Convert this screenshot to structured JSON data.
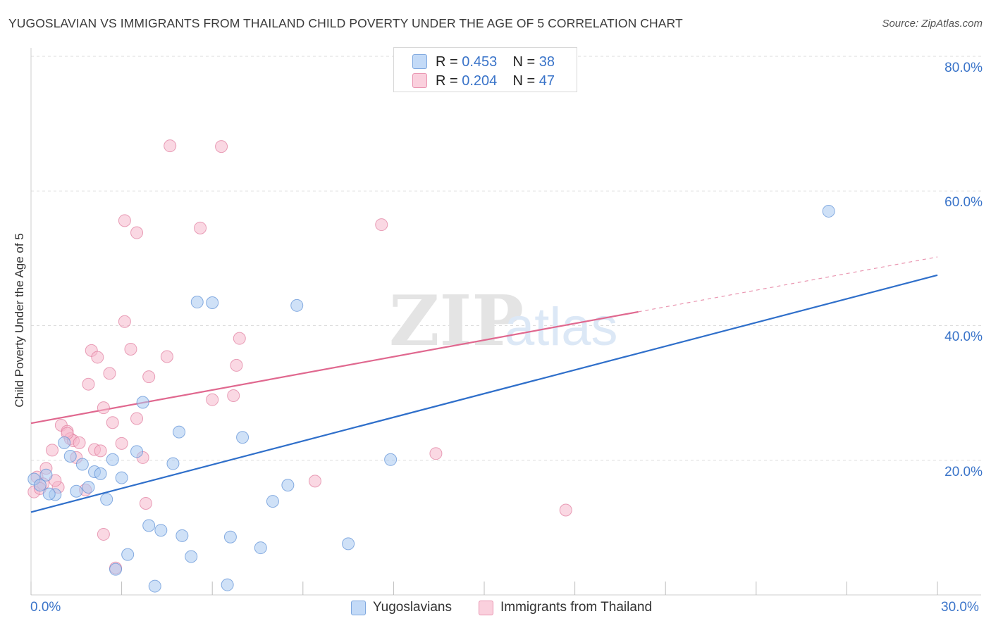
{
  "title": "YUGOSLAVIAN VS IMMIGRANTS FROM THAILAND CHILD POVERTY UNDER THE AGE OF 5 CORRELATION CHART",
  "source": "Source: ZipAtlas.com",
  "watermark": {
    "zip": "ZIP",
    "atlas": "atlas"
  },
  "legend": {
    "r_label": "R =",
    "n_label": "N =",
    "items": [
      {
        "name": "Yugoslavians",
        "r": "0.453",
        "n": "38",
        "color": "#a8c8f0",
        "edge": "#5b8fd6"
      },
      {
        "name": "Immigrants from Thailand",
        "r": "0.204",
        "n": "47",
        "color": "#f6b8cc",
        "edge": "#e07a9c"
      }
    ]
  },
  "chart_data": {
    "type": "scatter",
    "ylabel": "Child Poverty Under the Age of 5",
    "xlabel": "",
    "xlim": [
      0,
      30
    ],
    "ylim": [
      0,
      80
    ],
    "x_ticks": [
      "0.0%",
      "30.0%"
    ],
    "y_ticks": [
      "20.0%",
      "40.0%",
      "60.0%",
      "80.0%"
    ],
    "grid": true,
    "series": [
      {
        "name": "Yugoslavians",
        "color": "#a8c8f0",
        "edge": "#5b8fd6",
        "trend_color": "#2f6fca",
        "trend": {
          "x": [
            0,
            30
          ],
          "y": [
            12.3,
            47.5
          ],
          "dashed_from": null
        },
        "points": [
          [
            0.1,
            17.2
          ],
          [
            0.3,
            16.3
          ],
          [
            0.5,
            17.8
          ],
          [
            0.8,
            14.9
          ],
          [
            1.1,
            22.6
          ],
          [
            1.3,
            20.6
          ],
          [
            1.5,
            15.4
          ],
          [
            1.7,
            19.4
          ],
          [
            1.9,
            16.0
          ],
          [
            2.1,
            18.3
          ],
          [
            2.3,
            18.0
          ],
          [
            2.5,
            14.2
          ],
          [
            2.7,
            20.1
          ],
          [
            3.0,
            17.4
          ],
          [
            3.2,
            6.0
          ],
          [
            3.5,
            21.3
          ],
          [
            3.7,
            28.6
          ],
          [
            3.9,
            10.3
          ],
          [
            4.1,
            1.3
          ],
          [
            4.3,
            9.6
          ],
          [
            4.7,
            19.5
          ],
          [
            4.9,
            24.2
          ],
          [
            5.0,
            8.8
          ],
          [
            5.3,
            5.7
          ],
          [
            5.5,
            43.5
          ],
          [
            6.0,
            43.4
          ],
          [
            6.5,
            1.5
          ],
          [
            6.6,
            8.6
          ],
          [
            7.0,
            23.4
          ],
          [
            7.6,
            7.0
          ],
          [
            8.0,
            13.9
          ],
          [
            8.5,
            16.3
          ],
          [
            8.8,
            43.0
          ],
          [
            10.5,
            7.6
          ],
          [
            11.9,
            20.1
          ],
          [
            26.4,
            57.0
          ],
          [
            2.8,
            3.8
          ],
          [
            0.6,
            15.0
          ]
        ]
      },
      {
        "name": "Immigrants from Thailand",
        "color": "#f6b8cc",
        "edge": "#e07a9c",
        "trend_color": "#e0688f",
        "trend": {
          "x": [
            0,
            30
          ],
          "y": [
            25.5,
            50.2
          ],
          "dashed_from": 20.1
        },
        "points": [
          [
            0.1,
            15.3
          ],
          [
            0.2,
            17.5
          ],
          [
            0.4,
            16.5
          ],
          [
            0.5,
            18.8
          ],
          [
            0.7,
            21.5
          ],
          [
            0.9,
            16.0
          ],
          [
            1.0,
            25.2
          ],
          [
            1.2,
            24.3
          ],
          [
            1.3,
            23.2
          ],
          [
            1.4,
            22.9
          ],
          [
            1.5,
            20.4
          ],
          [
            1.6,
            22.6
          ],
          [
            1.8,
            15.6
          ],
          [
            1.9,
            31.3
          ],
          [
            2.0,
            36.3
          ],
          [
            2.1,
            21.6
          ],
          [
            2.2,
            35.3
          ],
          [
            2.4,
            27.8
          ],
          [
            2.4,
            9.0
          ],
          [
            2.6,
            32.9
          ],
          [
            2.7,
            25.6
          ],
          [
            2.8,
            4.0
          ],
          [
            3.0,
            22.5
          ],
          [
            3.1,
            55.6
          ],
          [
            3.1,
            40.6
          ],
          [
            3.3,
            36.5
          ],
          [
            3.5,
            53.8
          ],
          [
            3.5,
            26.2
          ],
          [
            3.7,
            20.4
          ],
          [
            3.8,
            13.6
          ],
          [
            3.9,
            32.4
          ],
          [
            4.5,
            35.4
          ],
          [
            4.6,
            66.7
          ],
          [
            5.6,
            54.5
          ],
          [
            6.0,
            29.0
          ],
          [
            6.3,
            66.6
          ],
          [
            6.7,
            29.6
          ],
          [
            6.8,
            34.1
          ],
          [
            6.9,
            38.1
          ],
          [
            9.4,
            16.9
          ],
          [
            11.6,
            55.0
          ],
          [
            13.4,
            21.0
          ],
          [
            17.7,
            12.6
          ],
          [
            0.3,
            15.8
          ],
          [
            1.2,
            24.0
          ],
          [
            0.8,
            17.0
          ],
          [
            2.3,
            21.4
          ]
        ]
      }
    ]
  }
}
